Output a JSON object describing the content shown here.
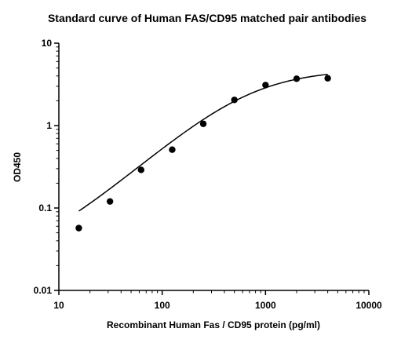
{
  "chart_data": {
    "type": "scatter",
    "title": "Standard curve of Human FAS/CD95 matched pair antibodies",
    "xlabel": "Recombinant Human Fas / CD95 protein (pg/ml)",
    "ylabel": "OD450",
    "x_scale": "log",
    "y_scale": "log",
    "xlim": [
      10,
      10000
    ],
    "ylim": [
      0.01,
      10
    ],
    "x_ticks": [
      "10",
      "100",
      "1000",
      "10000"
    ],
    "y_ticks": [
      "0.01",
      "0.1",
      "1",
      "10"
    ],
    "grid": false,
    "series": [
      {
        "points": [
          {
            "x": 15.6,
            "y": 0.057
          },
          {
            "x": 31.25,
            "y": 0.12
          },
          {
            "x": 62.5,
            "y": 0.29
          },
          {
            "x": 125,
            "y": 0.51
          },
          {
            "x": 250,
            "y": 1.05
          },
          {
            "x": 500,
            "y": 2.05
          },
          {
            "x": 1000,
            "y": 3.1
          },
          {
            "x": 2000,
            "y": 3.7
          },
          {
            "x": 4000,
            "y": 3.75
          }
        ]
      }
    ],
    "fit_curve": {
      "type": "4PL",
      "bottom": 0.02,
      "top": 4.8,
      "ec50": 700,
      "hill": 1.1,
      "x_range": [
        15.6,
        4000
      ]
    },
    "colors": {
      "marker": "#000000",
      "line": "#000000"
    }
  }
}
